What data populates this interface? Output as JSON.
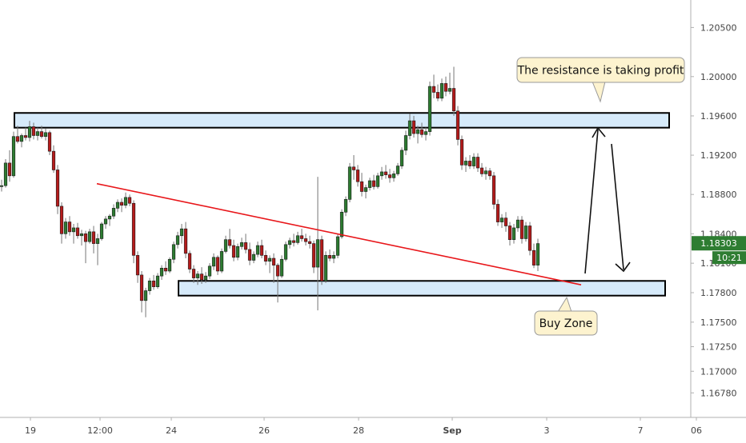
{
  "chart_data": {
    "type": "candlestick",
    "title": "",
    "xlabel": "",
    "ylabel": "",
    "ylim": [
      1.1653,
      1.2078
    ],
    "grid": false,
    "y_ticks": [
      "1.20500",
      "1.20000",
      "1.19600",
      "1.19200",
      "1.18800",
      "1.18400",
      "1.18100",
      "1.17800",
      "1.17500",
      "1.17250",
      "1.17000",
      "1.16780"
    ],
    "x_ticks": [
      "19",
      "12:00",
      "24",
      "26",
      "28",
      "Sep",
      "3",
      "7",
      "06"
    ],
    "current_price": "1.18303",
    "countdown": "10:21",
    "colors": {
      "up": "#2e7d32",
      "down": "#b71c1c",
      "zone_fill": "#d6eafa",
      "trendline": "#e8161a",
      "price_tag": "#2e7d32",
      "callout_fill": "#fdf3cf"
    },
    "zones": [
      {
        "name": "resistance",
        "y_low": 1.1948,
        "y_high": 1.1963
      },
      {
        "name": "buy-zone",
        "y_low": 1.1777,
        "y_high": 1.1792
      }
    ],
    "trendline": {
      "from": 1.1891,
      "to": 1.1788
    },
    "annotations": [
      {
        "name": "resistance-callout",
        "text": "The resistance is taking profit"
      },
      {
        "name": "buy-zone-callout",
        "text": "Buy Zone"
      }
    ],
    "ohlc": [
      [
        1.1888,
        1.1895,
        1.1883,
        1.1889
      ],
      [
        1.1889,
        1.1916,
        1.1887,
        1.1912
      ],
      [
        1.1912,
        1.1925,
        1.1893,
        1.1899
      ],
      [
        1.1899,
        1.1944,
        1.1897,
        1.1939
      ],
      [
        1.1939,
        1.195,
        1.1932,
        1.1934
      ],
      [
        1.1934,
        1.1942,
        1.1928,
        1.194
      ],
      [
        1.194,
        1.1948,
        1.1935,
        1.1938
      ],
      [
        1.1938,
        1.1955,
        1.1934,
        1.1949
      ],
      [
        1.1949,
        1.1953,
        1.1936,
        1.194
      ],
      [
        1.194,
        1.1948,
        1.1935,
        1.1944
      ],
      [
        1.1944,
        1.195,
        1.1937,
        1.1939
      ],
      [
        1.1939,
        1.1947,
        1.1935,
        1.1943
      ],
      [
        1.1943,
        1.1945,
        1.192,
        1.1924
      ],
      [
        1.1924,
        1.193,
        1.1902,
        1.1905
      ],
      [
        1.1905,
        1.191,
        1.186,
        1.1868
      ],
      [
        1.1868,
        1.1872,
        1.183,
        1.184
      ],
      [
        1.184,
        1.1856,
        1.1835,
        1.1852
      ],
      [
        1.1852,
        1.1858,
        1.1838,
        1.1842
      ],
      [
        1.1842,
        1.185,
        1.183,
        1.1846
      ],
      [
        1.1846,
        1.1851,
        1.1835,
        1.1838
      ],
      [
        1.1838,
        1.1844,
        1.1828,
        1.184
      ],
      [
        1.184,
        1.1843,
        1.181,
        1.1832
      ],
      [
        1.1832,
        1.1845,
        1.183,
        1.1842
      ],
      [
        1.1842,
        1.1848,
        1.182,
        1.183
      ],
      [
        1.183,
        1.184,
        1.1808,
        1.1835
      ],
      [
        1.1835,
        1.1852,
        1.1833,
        1.185
      ],
      [
        1.185,
        1.1858,
        1.1845,
        1.1855
      ],
      [
        1.1855,
        1.186,
        1.1848,
        1.1858
      ],
      [
        1.1858,
        1.187,
        1.1855,
        1.1866
      ],
      [
        1.1866,
        1.1875,
        1.1862,
        1.1872
      ],
      [
        1.1872,
        1.1876,
        1.1862,
        1.1869
      ],
      [
        1.1869,
        1.1882,
        1.1866,
        1.1877
      ],
      [
        1.1877,
        1.188,
        1.1868,
        1.1871
      ],
      [
        1.1871,
        1.1874,
        1.181,
        1.1818
      ],
      [
        1.1818,
        1.1822,
        1.179,
        1.1798
      ],
      [
        1.1798,
        1.1802,
        1.176,
        1.1772
      ],
      [
        1.1772,
        1.1785,
        1.1755,
        1.1782
      ],
      [
        1.1782,
        1.1795,
        1.1778,
        1.1792
      ],
      [
        1.1792,
        1.1798,
        1.1783,
        1.1786
      ],
      [
        1.1786,
        1.18,
        1.1784,
        1.1797
      ],
      [
        1.1797,
        1.1808,
        1.1793,
        1.1805
      ],
      [
        1.1805,
        1.1812,
        1.1798,
        1.1802
      ],
      [
        1.1802,
        1.1816,
        1.18,
        1.1814
      ],
      [
        1.1814,
        1.1832,
        1.181,
        1.1829
      ],
      [
        1.1829,
        1.1842,
        1.1825,
        1.1838
      ],
      [
        1.1838,
        1.185,
        1.183,
        1.1845
      ],
      [
        1.1845,
        1.1852,
        1.1815,
        1.182
      ],
      [
        1.182,
        1.1823,
        1.18,
        1.1804
      ],
      [
        1.1804,
        1.1808,
        1.179,
        1.1795
      ],
      [
        1.1795,
        1.1802,
        1.1788,
        1.1799
      ],
      [
        1.1799,
        1.1806,
        1.1789,
        1.1793
      ],
      [
        1.1793,
        1.1801,
        1.179,
        1.1797
      ],
      [
        1.1797,
        1.181,
        1.1794,
        1.1807
      ],
      [
        1.1807,
        1.182,
        1.1803,
        1.1816
      ],
      [
        1.1816,
        1.1818,
        1.1798,
        1.1802
      ],
      [
        1.1802,
        1.1825,
        1.18,
        1.1822
      ],
      [
        1.1822,
        1.1838,
        1.182,
        1.1834
      ],
      [
        1.1834,
        1.1845,
        1.1825,
        1.1828
      ],
      [
        1.1828,
        1.1834,
        1.1812,
        1.1816
      ],
      [
        1.1816,
        1.183,
        1.1813,
        1.1827
      ],
      [
        1.1827,
        1.1836,
        1.1824,
        1.1831
      ],
      [
        1.1831,
        1.184,
        1.182,
        1.1824
      ],
      [
        1.1824,
        1.1831,
        1.1808,
        1.1813
      ],
      [
        1.1813,
        1.1822,
        1.181,
        1.1819
      ],
      [
        1.1819,
        1.1832,
        1.1816,
        1.1828
      ],
      [
        1.1828,
        1.1834,
        1.1815,
        1.1818
      ],
      [
        1.1818,
        1.1823,
        1.1808,
        1.1812
      ],
      [
        1.1812,
        1.1818,
        1.18,
        1.1815
      ],
      [
        1.1815,
        1.182,
        1.179,
        1.1808
      ],
      [
        1.1808,
        1.181,
        1.177,
        1.1797
      ],
      [
        1.1797,
        1.1818,
        1.1795,
        1.1814
      ],
      [
        1.1814,
        1.1832,
        1.1812,
        1.1829
      ],
      [
        1.1829,
        1.1836,
        1.1825,
        1.1833
      ],
      [
        1.1833,
        1.184,
        1.1827,
        1.1831
      ],
      [
        1.1831,
        1.1842,
        1.1829,
        1.1838
      ],
      [
        1.1838,
        1.1845,
        1.1832,
        1.1835
      ],
      [
        1.1835,
        1.184,
        1.1828,
        1.1832
      ],
      [
        1.1832,
        1.1838,
        1.1825,
        1.183
      ],
      [
        1.183,
        1.1833,
        1.18,
        1.1806
      ],
      [
        1.1806,
        1.1898,
        1.1762,
        1.1834
      ],
      [
        1.1834,
        1.1838,
        1.1788,
        1.1792
      ],
      [
        1.1792,
        1.1822,
        1.179,
        1.1818
      ],
      [
        1.1818,
        1.1824,
        1.1812,
        1.1815
      ],
      [
        1.1815,
        1.1822,
        1.181,
        1.1818
      ],
      [
        1.1818,
        1.184,
        1.1815,
        1.1837
      ],
      [
        1.1837,
        1.1865,
        1.1835,
        1.1862
      ],
      [
        1.1862,
        1.1878,
        1.1858,
        1.1875
      ],
      [
        1.1875,
        1.1912,
        1.1872,
        1.1908
      ],
      [
        1.1908,
        1.192,
        1.1895,
        1.1905
      ],
      [
        1.1905,
        1.191,
        1.1888,
        1.1893
      ],
      [
        1.1893,
        1.1902,
        1.1878,
        1.1883
      ],
      [
        1.1883,
        1.189,
        1.1876,
        1.1887
      ],
      [
        1.1887,
        1.1897,
        1.1884,
        1.1894
      ],
      [
        1.1894,
        1.19,
        1.1885,
        1.1888
      ],
      [
        1.1888,
        1.1902,
        1.1886,
        1.1899
      ],
      [
        1.1899,
        1.1908,
        1.1895,
        1.1903
      ],
      [
        1.1903,
        1.191,
        1.1896,
        1.19
      ],
      [
        1.19,
        1.1906,
        1.1892,
        1.1897
      ],
      [
        1.1897,
        1.1904,
        1.1893,
        1.1901
      ],
      [
        1.1901,
        1.1912,
        1.1899,
        1.1909
      ],
      [
        1.1909,
        1.1928,
        1.1906,
        1.1925
      ],
      [
        1.1925,
        1.1945,
        1.192,
        1.194
      ],
      [
        1.194,
        1.1962,
        1.1936,
        1.1955
      ],
      [
        1.1955,
        1.196,
        1.1938,
        1.1942
      ],
      [
        1.1942,
        1.195,
        1.1932,
        1.1946
      ],
      [
        1.1946,
        1.1953,
        1.1938,
        1.1941
      ],
      [
        1.1941,
        1.1948,
        1.1935,
        1.1944
      ],
      [
        1.1944,
        1.1995,
        1.194,
        1.199
      ],
      [
        1.199,
        1.2002,
        1.1978,
        1.1984
      ],
      [
        1.1984,
        1.1992,
        1.1975,
        1.1978
      ],
      [
        1.1978,
        1.1998,
        1.1975,
        1.1993
      ],
      [
        1.1993,
        1.2,
        1.198,
        1.1985
      ],
      [
        1.1985,
        1.2004,
        1.1982,
        1.1988
      ],
      [
        1.1988,
        1.201,
        1.196,
        1.1965
      ],
      [
        1.1965,
        1.197,
        1.193,
        1.1936
      ],
      [
        1.1936,
        1.194,
        1.1905,
        1.191
      ],
      [
        1.191,
        1.1918,
        1.1903,
        1.1914
      ],
      [
        1.1914,
        1.192,
        1.1906,
        1.1909
      ],
      [
        1.1909,
        1.1922,
        1.1906,
        1.1918
      ],
      [
        1.1918,
        1.1922,
        1.1903,
        1.1907
      ],
      [
        1.1907,
        1.1912,
        1.1898,
        1.1901
      ],
      [
        1.1901,
        1.1908,
        1.1895,
        1.1904
      ],
      [
        1.1904,
        1.1907,
        1.1895,
        1.1899
      ],
      [
        1.1899,
        1.1903,
        1.1865,
        1.187
      ],
      [
        1.187,
        1.1875,
        1.1848,
        1.1852
      ],
      [
        1.1852,
        1.186,
        1.1846,
        1.1856
      ],
      [
        1.1856,
        1.1862,
        1.1842,
        1.1848
      ],
      [
        1.1848,
        1.1852,
        1.1828,
        1.1834
      ],
      [
        1.1834,
        1.185,
        1.183,
        1.1846
      ],
      [
        1.1846,
        1.1858,
        1.1842,
        1.1854
      ],
      [
        1.1854,
        1.1858,
        1.183,
        1.1835
      ],
      [
        1.1835,
        1.1852,
        1.1832,
        1.1848
      ],
      [
        1.1848,
        1.1852,
        1.1818,
        1.1823
      ],
      [
        1.1823,
        1.183,
        1.1805,
        1.1808
      ],
      [
        1.1808,
        1.1835,
        1.1802,
        1.183
      ]
    ]
  }
}
